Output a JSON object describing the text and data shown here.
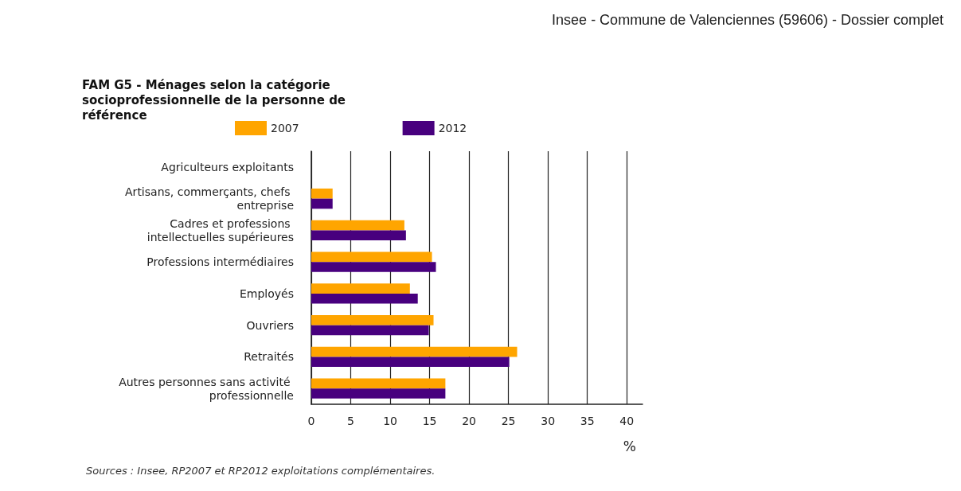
{
  "chart_data": {
    "type": "bar",
    "orientation": "horizontal",
    "title": "FAM G5 - Ménages selon la catégorie socioprofessionnelle de la personne de référence",
    "categories": [
      "Agriculteurs exploitants",
      "Artisans, commerçants, chefs entreprise",
      "Cadres et professions intellectuelles supérieures",
      "Professions intermédiaires",
      "Employés",
      "Ouvriers",
      "Retraités",
      "Autres personnes sans activité professionnelle"
    ],
    "series": [
      {
        "name": "2007",
        "color": "#ffa500",
        "values": [
          0,
          2.7,
          11.8,
          15.3,
          12.5,
          15.5,
          26.1,
          17.0
        ]
      },
      {
        "name": "2012",
        "color": "#48007e",
        "values": [
          0,
          2.7,
          12.0,
          15.8,
          13.5,
          14.9,
          25.1,
          17.0
        ]
      }
    ],
    "xlabel": "%",
    "xlim": [
      0,
      42
    ],
    "xticks": [
      0,
      5,
      10,
      15,
      20,
      25,
      30,
      35,
      40
    ],
    "grid": "x",
    "legend": "top",
    "annotations": [
      "Insee - Commune de Valenciennes (59606) - Dossier complet",
      "Sources : Insee, RP2007 et RP2012 exploitations complémentaires."
    ]
  }
}
